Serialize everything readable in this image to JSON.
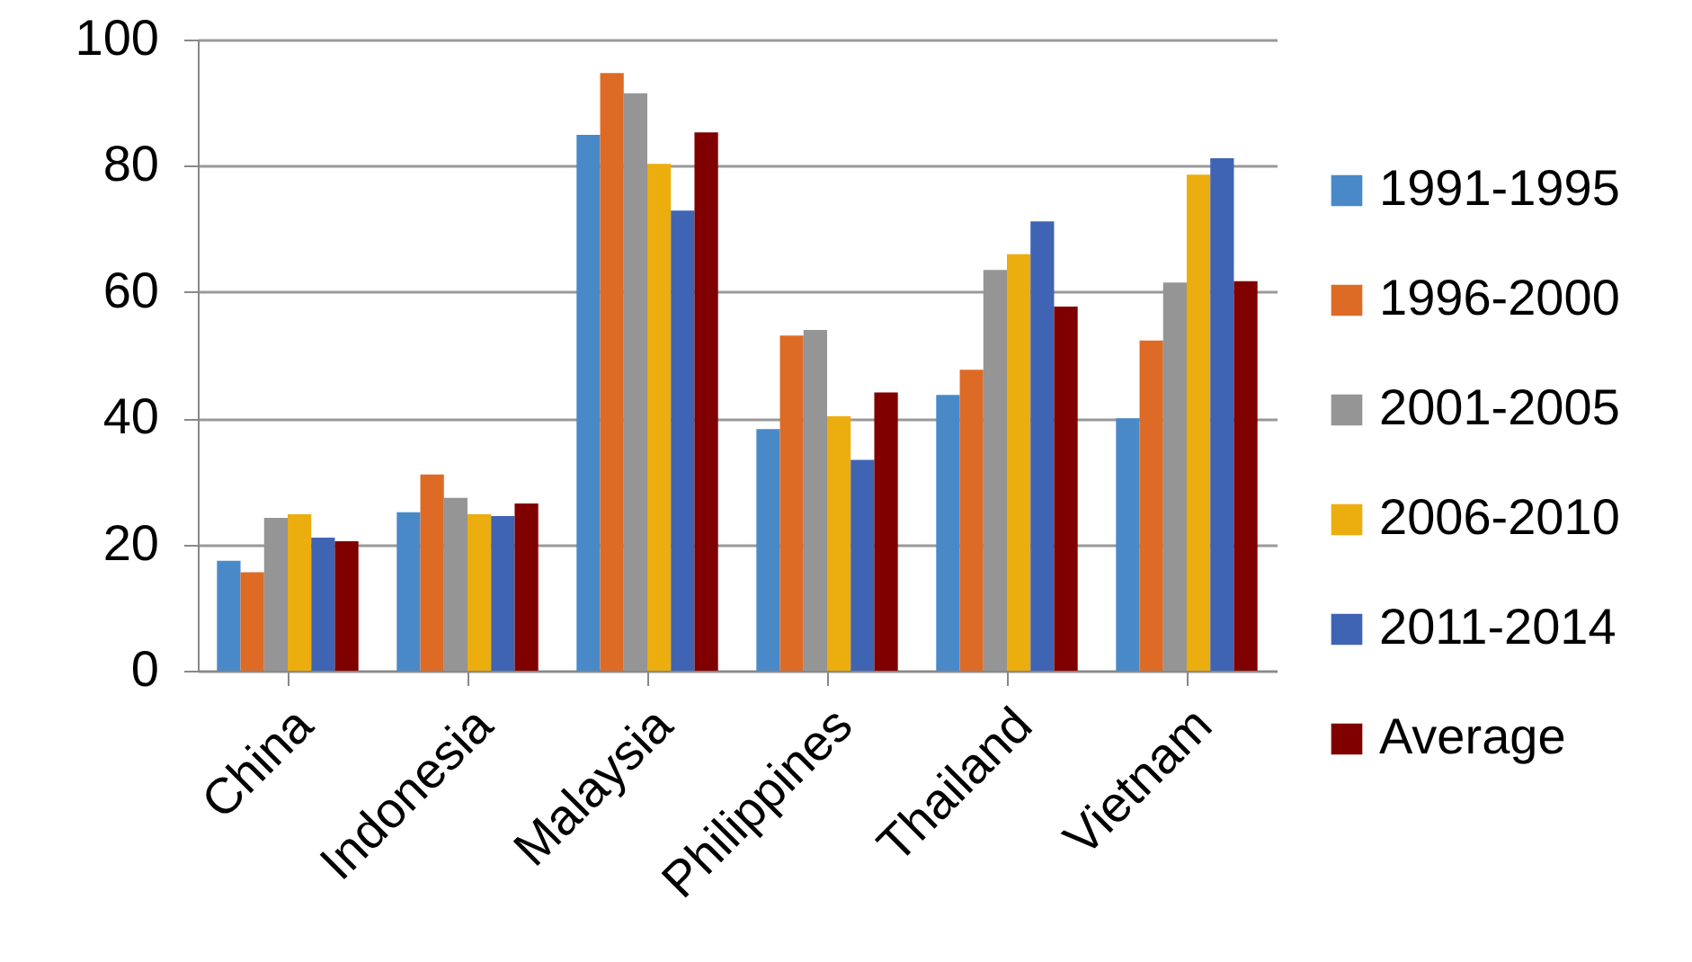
{
  "chart_data": {
    "type": "bar",
    "categories": [
      "China",
      "Indonesia",
      "Malaysia",
      "Philippines",
      "Thailand",
      "Vietnam"
    ],
    "series": [
      {
        "name": "1991-1995",
        "color": "#4a89c8",
        "values": [
          17.4,
          25.1,
          84.9,
          38.3,
          43.7,
          40.0
        ]
      },
      {
        "name": "1996-2000",
        "color": "#dd6b26",
        "values": [
          15.6,
          31.1,
          94.7,
          53.1,
          47.7,
          52.3
        ]
      },
      {
        "name": "2001-2005",
        "color": "#959595",
        "values": [
          24.2,
          27.4,
          91.5,
          54.0,
          63.5,
          61.5
        ]
      },
      {
        "name": "2006-2010",
        "color": "#ecad0e",
        "values": [
          24.8,
          24.8,
          80.3,
          40.3,
          66.0,
          78.6
        ]
      },
      {
        "name": "2011-2014",
        "color": "#3f64b4",
        "values": [
          21.1,
          24.5,
          72.9,
          33.4,
          71.2,
          81.2
        ]
      },
      {
        "name": "Average",
        "color": "#800000",
        "values": [
          20.5,
          26.5,
          85.3,
          44.1,
          57.7,
          61.7
        ]
      }
    ],
    "ylim": [
      0,
      100
    ],
    "yticks": [
      0,
      20,
      40,
      60,
      80,
      100
    ],
    "grid": "y",
    "legend": "right"
  }
}
